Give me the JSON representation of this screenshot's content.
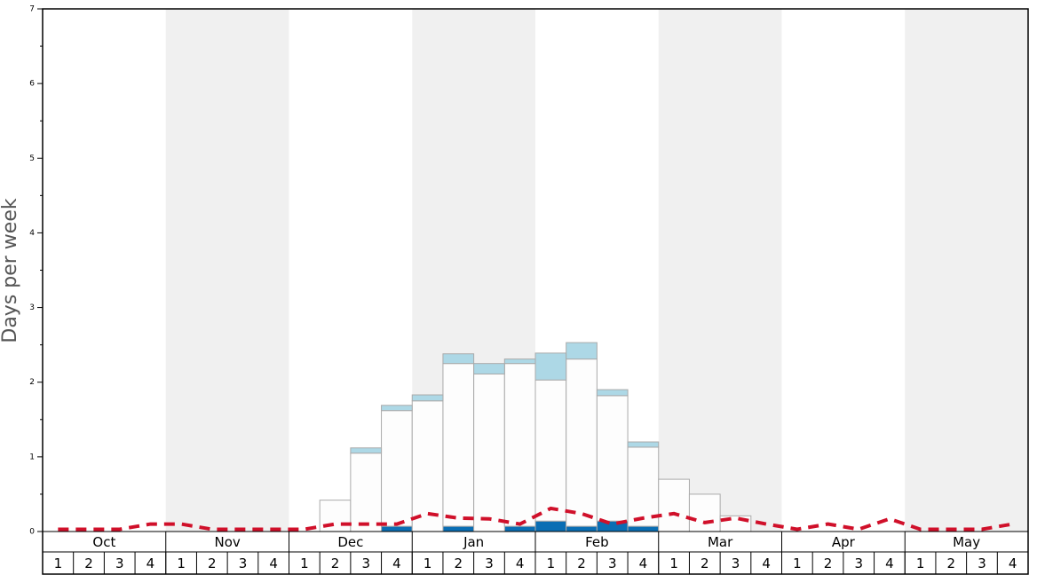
{
  "chart_data": {
    "type": "bar",
    "stacked": true,
    "y_label": "Days per week",
    "months": [
      "Oct",
      "Nov",
      "Dec",
      "Jan",
      "Feb",
      "Mar",
      "Apr",
      "May"
    ],
    "categories": [
      "1",
      "2",
      "3",
      "4",
      "1",
      "2",
      "3",
      "4",
      "1",
      "2",
      "3",
      "4",
      "1",
      "2",
      "3",
      "4",
      "1",
      "2",
      "3",
      "4",
      "1",
      "2",
      "3",
      "4",
      "1",
      "2",
      "3",
      "4",
      "1",
      "2",
      "3",
      "4"
    ],
    "ylim": [
      0,
      7
    ],
    "yticks": [
      0,
      1,
      2,
      3,
      4,
      5,
      6,
      7
    ],
    "yminor": [
      0.5,
      1.5,
      2.5,
      3.5,
      4.5,
      5.5,
      6.5
    ],
    "series": [
      {
        "type": "bar",
        "color": "#0a6eb4",
        "values": [
          0,
          0,
          0,
          0,
          0,
          0,
          0,
          0,
          0,
          0,
          0,
          0.07,
          0,
          0.07,
          0,
          0.07,
          0.14,
          0.07,
          0.14,
          0.07,
          0,
          0,
          0,
          0,
          0,
          0,
          0,
          0,
          0,
          0,
          0,
          0
        ]
      },
      {
        "type": "bar",
        "color": "#fdfdfd",
        "values": [
          0,
          0,
          0,
          0,
          0,
          0,
          0,
          0,
          0,
          0.42,
          1.05,
          1.55,
          1.75,
          2.18,
          2.11,
          2.18,
          1.89,
          2.24,
          1.68,
          1.06,
          0.7,
          0.5,
          0.21,
          0,
          0,
          0,
          0,
          0,
          0,
          0,
          0,
          0
        ]
      },
      {
        "type": "bar",
        "color": "#add8e6",
        "values": [
          0,
          0,
          0,
          0,
          0,
          0,
          0,
          0,
          0,
          0,
          0.07,
          0.07,
          0.08,
          0.13,
          0.14,
          0.06,
          0.36,
          0.22,
          0.08,
          0.07,
          0,
          0,
          0,
          0,
          0,
          0,
          0,
          0,
          0,
          0,
          0,
          0
        ]
      },
      {
        "type": "line",
        "color": "#d0102a",
        "values": [
          0.03,
          0.03,
          0.03,
          0.1,
          0.1,
          0.03,
          0.03,
          0.03,
          0.03,
          0.1,
          0.1,
          0.1,
          0.24,
          0.18,
          0.17,
          0.1,
          0.31,
          0.24,
          0.1,
          0.18,
          0.24,
          0.12,
          0.18,
          0.1,
          0.03,
          0.1,
          0.03,
          0.17,
          0.03,
          0.03,
          0.03,
          0.1
        ]
      }
    ]
  }
}
